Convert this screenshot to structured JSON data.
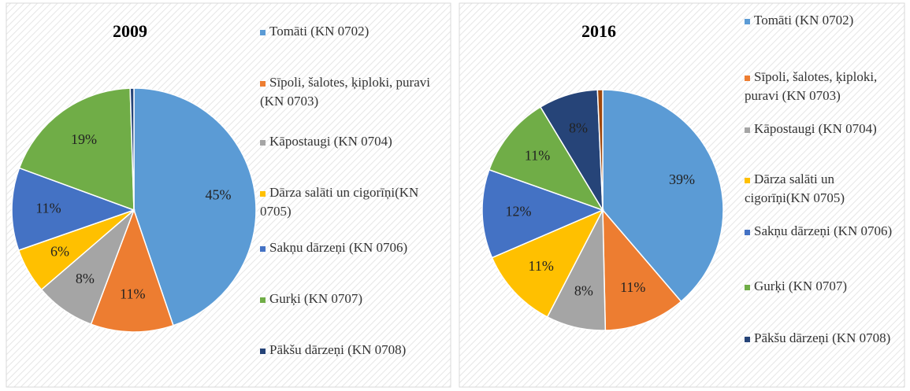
{
  "chart_data": [
    {
      "type": "pie",
      "title": "2009",
      "categories": [
        "Tomāti (KN 0702)",
        "Sīpoli, šalotes, ķiploki, puravi (KN 0703)",
        "Kāpostaugi (KN 0704)",
        "Dārza salāti un cigorīņi(KN 0705)",
        "Sakņu dārzeņi (KN 0706)",
        "Gurķi (KN 0707)",
        "Pākšu dārzeņi (KN 0708)"
      ],
      "values": [
        45,
        11,
        8,
        6,
        11,
        19,
        0.5
      ],
      "value_labels": [
        "45%",
        "11%",
        "8%",
        "6%",
        "11%",
        "19%",
        null
      ],
      "colors": [
        "#5b9bd5",
        "#ed7d31",
        "#a5a5a5",
        "#ffc000",
        "#4472c4",
        "#70ad47",
        "#264478"
      ]
    },
    {
      "type": "pie",
      "title": "2016",
      "categories": [
        "Tomāti (KN 0702)",
        "Sīpoli, šalotes, ķiploki, puravi (KN 0703)",
        "Kāpostaugi (KN 0704)",
        "Dārza salāti un cigorīņi(KN 0705)",
        "Sakņu dārzeņi (KN 0706)",
        "Gurķi (KN 0707)",
        "Pākšu dārzeņi (KN 0708)",
        null
      ],
      "values": [
        39,
        11,
        8,
        11,
        12,
        11,
        8,
        0.7
      ],
      "value_labels": [
        "39%",
        "11%",
        "8%",
        "11%",
        "12%",
        "11%",
        "8%",
        null
      ],
      "colors": [
        "#5b9bd5",
        "#ed7d31",
        "#a5a5a5",
        "#ffc000",
        "#4472c4",
        "#70ad47",
        "#264478",
        "#9e480e"
      ]
    }
  ]
}
